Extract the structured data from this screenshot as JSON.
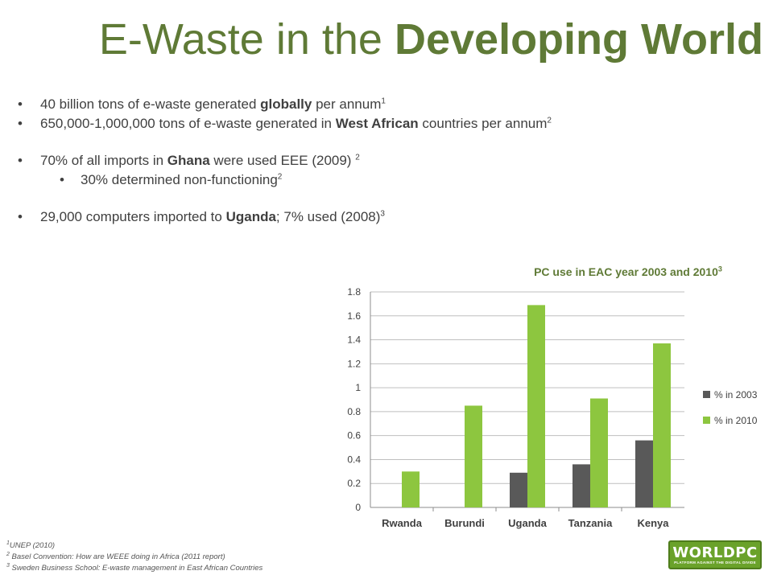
{
  "title": {
    "plain": "E-Waste in the",
    "bold": "Developing World"
  },
  "bullets": [
    {
      "pre": "40 billion tons of e-waste generated ",
      "bold": "globally",
      "post": " per annum",
      "ref": "1"
    },
    {
      "pre": "650,000-1,000,000 tons of e-waste generated in ",
      "bold": "West African",
      "post": " countries per annum",
      "ref": "2"
    },
    {
      "pre": "70% of all imports in ",
      "bold": "Ghana",
      "post": " were used EEE (2009) ",
      "ref": "2"
    },
    {
      "pre": "30%  determined non-functioning",
      "bold": "",
      "post": "",
      "ref": "2"
    },
    {
      "pre": "29,000 computers imported to ",
      "bold": "Uganda",
      "post": "; 7% used (2008)",
      "ref": "3"
    }
  ],
  "chart_title": {
    "text": "PC use in EAC year 2003 and 2010",
    "ref": "3"
  },
  "chart_data": {
    "type": "bar",
    "categories": [
      "Rwanda",
      "Burundi",
      "Uganda",
      "Tanzania",
      "Kenya"
    ],
    "series": [
      {
        "name": "% in 2003",
        "values": [
          0,
          0,
          0.29,
          0.36,
          0.56
        ],
        "color": "#595959"
      },
      {
        "name": "% in 2010",
        "values": [
          0.3,
          0.85,
          1.69,
          0.91,
          1.37
        ],
        "color": "#8dc63f"
      }
    ],
    "ylim": [
      0,
      1.8
    ],
    "yticks": [
      "0",
      "0.2",
      "0.4",
      "0.6",
      "0.8",
      "1",
      "1.2",
      "1.4",
      "1.6",
      "1.8"
    ],
    "grid": true,
    "legend": "right"
  },
  "footnotes": [
    {
      "ref": "1",
      "text": "UNEP (2010)"
    },
    {
      "ref": "2",
      "text": " Basel Convention: How are WEEE doing in Africa (2011 report)"
    },
    {
      "ref": "3",
      "text": " Sweden Business School: E-waste management in East African Countries"
    }
  ],
  "logo": {
    "main": "WORLDPC",
    "sub": "PLATFORM AGAINST THE DIGITAL DIVIDE"
  }
}
